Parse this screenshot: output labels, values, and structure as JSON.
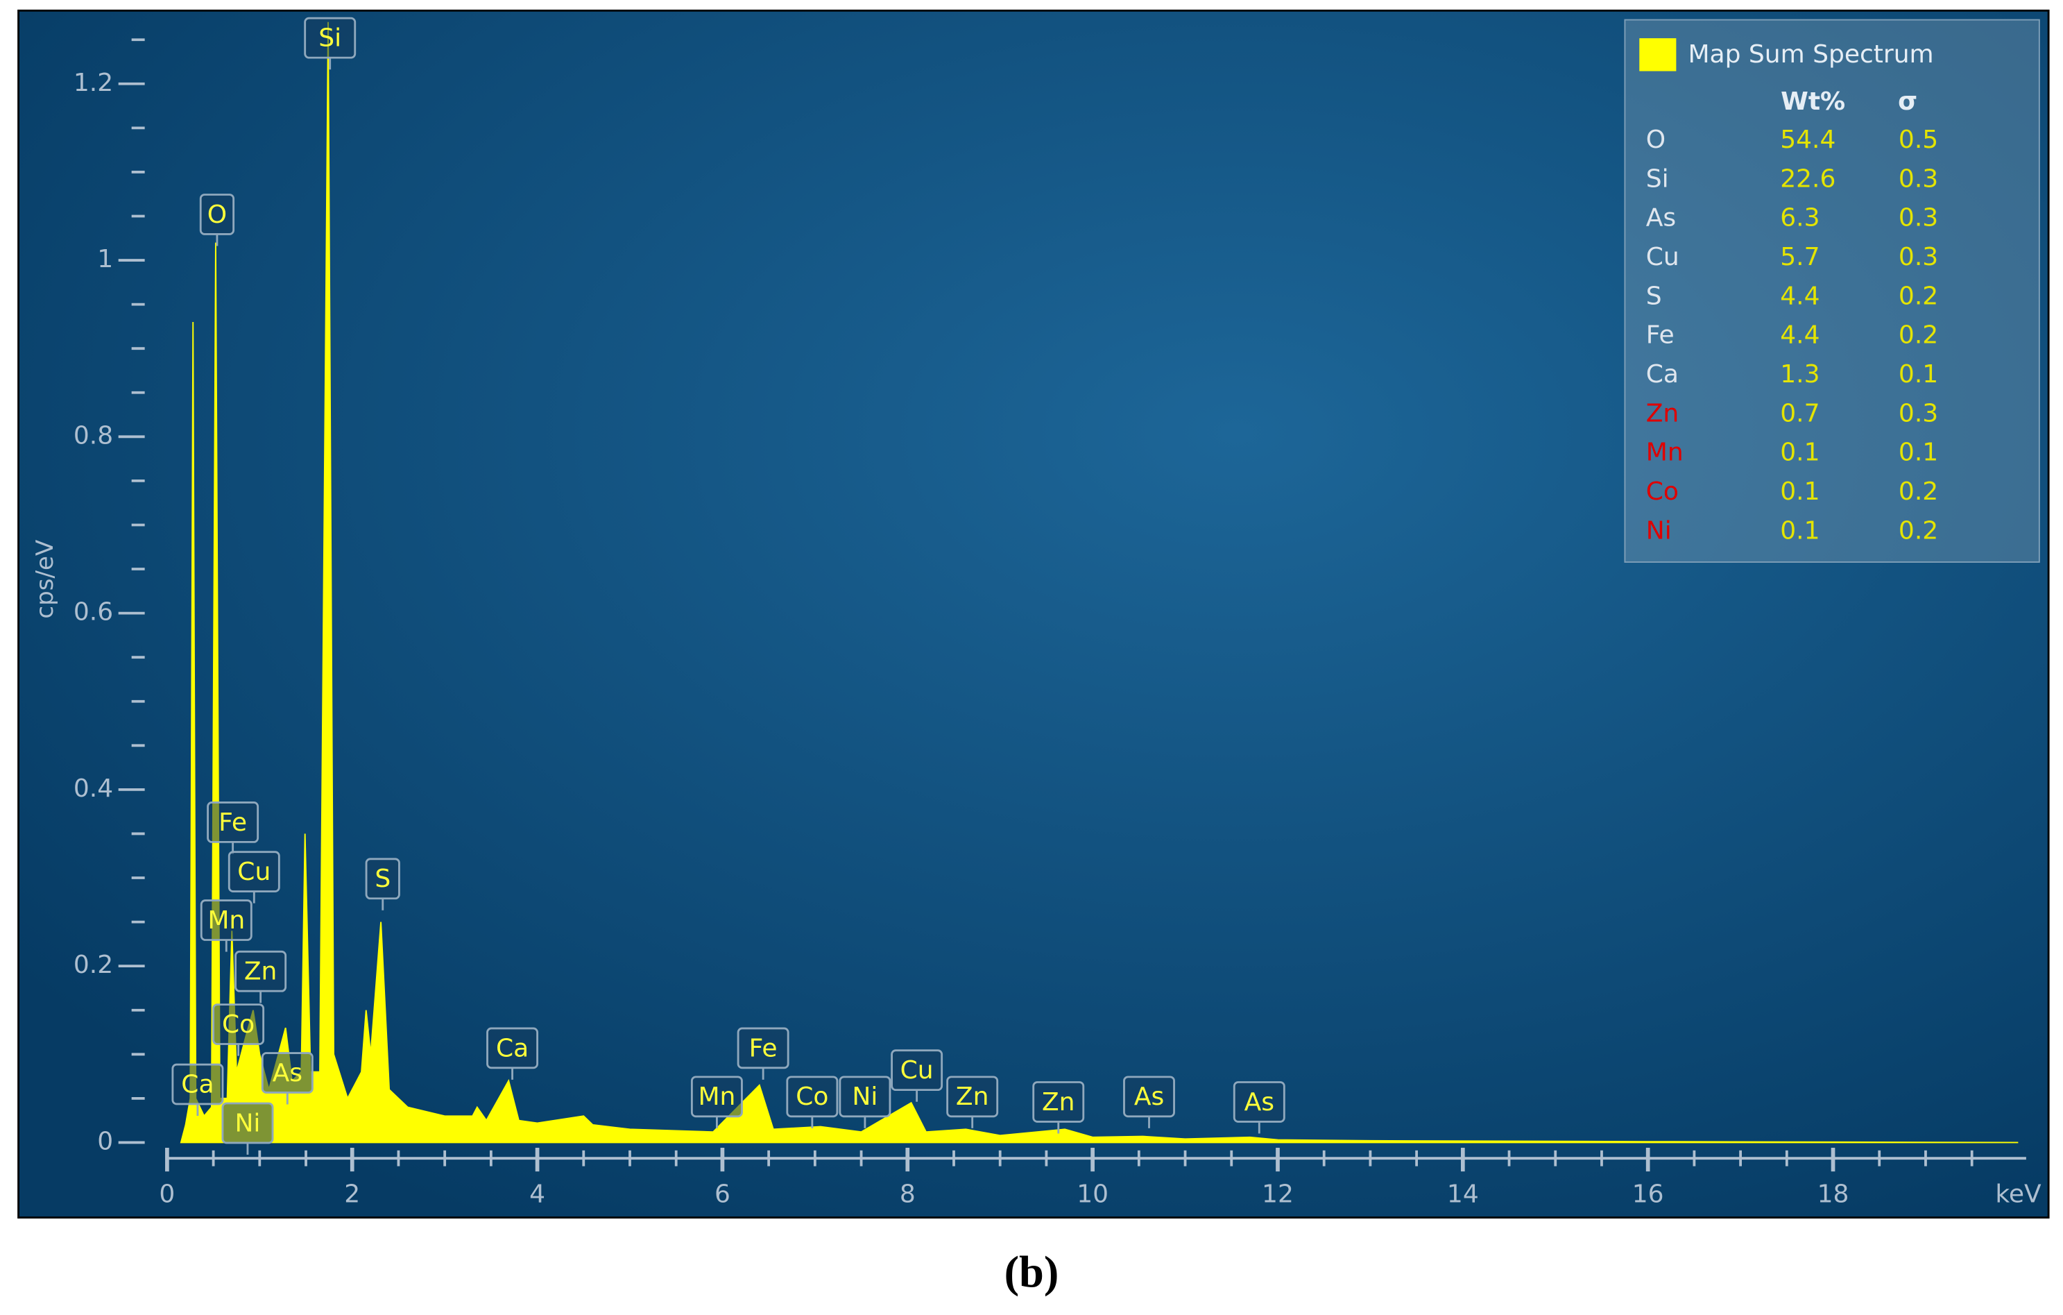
{
  "chart_data": {
    "type": "area",
    "x_label": "keV",
    "y_label": "cps/eV",
    "x": [
      0.15,
      0.2,
      0.25,
      0.28,
      0.31,
      0.4,
      0.48,
      0.525,
      0.57,
      0.65,
      0.7,
      0.75,
      0.85,
      0.93,
      1.0,
      1.1,
      1.28,
      1.35,
      1.45,
      1.49,
      1.55,
      1.65,
      1.74,
      1.8,
      1.95,
      2.1,
      2.15,
      2.2,
      2.31,
      2.4,
      2.6,
      3.0,
      3.3,
      3.35,
      3.45,
      3.69,
      3.8,
      4.0,
      4.5,
      4.6,
      5.0,
      5.9,
      6.4,
      6.55,
      7.06,
      7.5,
      8.04,
      8.2,
      8.63,
      9.0,
      9.7,
      10.0,
      10.54,
      11.0,
      11.7,
      12.0,
      13.0,
      16.0,
      20.0
    ],
    "series": [
      {
        "name": "Map Sum Spectrum",
        "color": "#ffff00",
        "values": [
          0,
          0.02,
          0.05,
          0.93,
          0.05,
          0.03,
          0.04,
          1.02,
          0.05,
          0.05,
          0.24,
          0.08,
          0.12,
          0.15,
          0.1,
          0.06,
          0.13,
          0.07,
          0.08,
          0.35,
          0.08,
          0.08,
          1.27,
          0.1,
          0.05,
          0.08,
          0.15,
          0.1,
          0.25,
          0.06,
          0.04,
          0.03,
          0.03,
          0.04,
          0.025,
          0.07,
          0.025,
          0.022,
          0.03,
          0.02,
          0.015,
          0.012,
          0.065,
          0.015,
          0.018,
          0.012,
          0.045,
          0.012,
          0.015,
          0.008,
          0.015,
          0.006,
          0.007,
          0.004,
          0.006,
          0.003,
          0.002,
          0.001,
          0
        ]
      }
    ],
    "xlim": [
      0,
      20.2
    ],
    "xticks": [
      0,
      2,
      4,
      6,
      8,
      10,
      12,
      14,
      16,
      18
    ],
    "ylim": [
      0,
      1.28
    ],
    "yticks": [
      0,
      0.2,
      0.4,
      0.6,
      0.8,
      1,
      1.2
    ],
    "annotations": [
      {
        "label": "Si",
        "x": 1.76,
        "y": 1.252
      },
      {
        "label": "O",
        "x": 0.54,
        "y": 1.052
      },
      {
        "label": "Fe",
        "x": 0.71,
        "y": 0.363
      },
      {
        "label": "Cu",
        "x": 0.94,
        "y": 0.307
      },
      {
        "label": "Mn",
        "x": 0.64,
        "y": 0.252
      },
      {
        "label": "Zn",
        "x": 1.01,
        "y": 0.194
      },
      {
        "label": "Co",
        "x": 0.77,
        "y": 0.134
      },
      {
        "label": "As",
        "x": 1.3,
        "y": 0.079
      },
      {
        "label": "Ca",
        "x": 0.33,
        "y": 0.066
      },
      {
        "label": "Ni",
        "x": 0.87,
        "y": 0.022
      },
      {
        "label": "S",
        "x": 2.33,
        "y": 0.299
      },
      {
        "label": "Ca",
        "x": 3.73,
        "y": 0.107
      },
      {
        "label": "Fe",
        "x": 6.44,
        "y": 0.107
      },
      {
        "label": "Mn",
        "x": 5.94,
        "y": 0.052
      },
      {
        "label": "Co",
        "x": 6.97,
        "y": 0.052
      },
      {
        "label": "Ni",
        "x": 7.54,
        "y": 0.052
      },
      {
        "label": "Cu",
        "x": 8.1,
        "y": 0.082
      },
      {
        "label": "Zn",
        "x": 8.7,
        "y": 0.052
      },
      {
        "label": "Zn",
        "x": 9.63,
        "y": 0.046
      },
      {
        "label": "As",
        "x": 10.61,
        "y": 0.052
      },
      {
        "label": "As",
        "x": 11.8,
        "y": 0.046
      }
    ],
    "quant_table": {
      "headers": [
        "Wt%",
        "σ"
      ],
      "rows": [
        {
          "element": "O",
          "wt": 54.4,
          "sigma": 0.5,
          "color": "#dfe6ee"
        },
        {
          "element": "Si",
          "wt": 22.6,
          "sigma": 0.3,
          "color": "#dfe6ee"
        },
        {
          "element": "As",
          "wt": 6.3,
          "sigma": 0.3,
          "color": "#dfe6ee"
        },
        {
          "element": "Cu",
          "wt": 5.7,
          "sigma": 0.3,
          "color": "#dfe6ee"
        },
        {
          "element": "S",
          "wt": 4.4,
          "sigma": 0.2,
          "color": "#dfe6ee"
        },
        {
          "element": "Fe",
          "wt": 4.4,
          "sigma": 0.2,
          "color": "#dfe6ee"
        },
        {
          "element": "Ca",
          "wt": 1.3,
          "sigma": 0.1,
          "color": "#dfe6ee"
        },
        {
          "element": "Zn",
          "wt": 0.7,
          "sigma": 0.3,
          "color": "#e00000"
        },
        {
          "element": "Mn",
          "wt": 0.1,
          "sigma": 0.1,
          "color": "#e00000"
        },
        {
          "element": "Co",
          "wt": 0.1,
          "sigma": 0.2,
          "color": "#e00000"
        },
        {
          "element": "Ni",
          "wt": 0.1,
          "sigma": 0.2,
          "color": "#e00000"
        }
      ]
    }
  },
  "caption": "(b)"
}
